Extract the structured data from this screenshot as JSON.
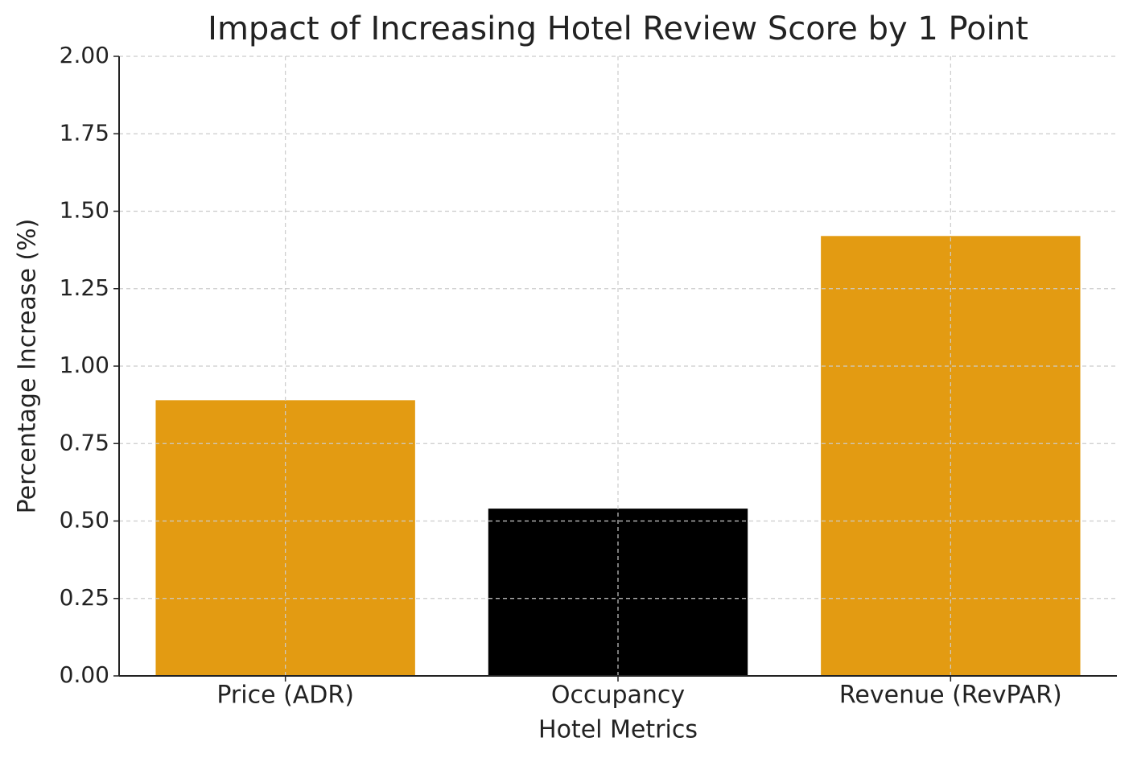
{
  "chart_data": {
    "type": "bar",
    "title": "Impact of Increasing Hotel Review Score by 1 Point",
    "x_label": "Hotel Metrics",
    "y_label": "Percentage Increase (%)",
    "categories": [
      "Price (ADR)",
      "Occupancy",
      "Revenue (RevPAR)"
    ],
    "values": [
      0.89,
      0.54,
      1.42
    ],
    "colors": [
      "#e39b12",
      "#000000",
      "#e39b12"
    ],
    "ylim": [
      0,
      2
    ],
    "yticks": [
      {
        "value": 0,
        "label": "0.00"
      },
      {
        "value": 0.25,
        "label": "0.25"
      },
      {
        "value": 0.5,
        "label": "0.50"
      },
      {
        "value": 0.75,
        "label": "0.75"
      },
      {
        "value": 1,
        "label": "1.00"
      },
      {
        "value": 1.25,
        "label": "1.25"
      },
      {
        "value": 1.5,
        "label": "1.50"
      },
      {
        "value": 1.75,
        "label": "1.75"
      },
      {
        "value": 2,
        "label": "2.00"
      }
    ],
    "grid": true
  }
}
